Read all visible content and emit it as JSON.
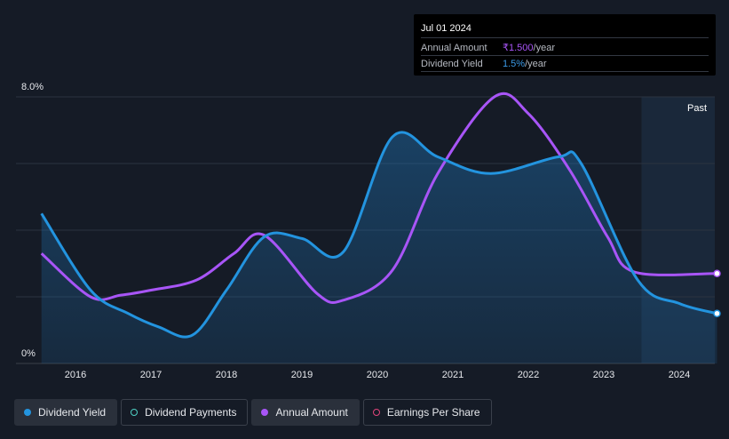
{
  "tooltip": {
    "date": "Jul 01 2024",
    "rows": [
      {
        "label": "Annual Amount",
        "value": "₹1.500",
        "unit": "/year"
      },
      {
        "label": "Dividend Yield",
        "value": "1.5%",
        "unit": "/year"
      }
    ]
  },
  "past_label": "Past",
  "legend": [
    {
      "label": "Dividend Yield",
      "color": "#2394df",
      "style": "filled",
      "active": true
    },
    {
      "label": "Dividend Payments",
      "color": "#4fd1c5",
      "style": "hollow",
      "active": false
    },
    {
      "label": "Annual Amount",
      "color": "#a855f7",
      "style": "filled",
      "active": true
    },
    {
      "label": "Earnings Per Share",
      "color": "#e0457b",
      "style": "hollow",
      "active": false
    }
  ],
  "colors": {
    "yield": "#2394df",
    "annual": "#a855f7",
    "grid": "#2c3340",
    "past_shade": "#1b2a3d"
  },
  "chart_data": {
    "type": "line",
    "y_tick_labels": [
      "8.0%",
      "0%"
    ],
    "ylim": [
      0,
      8
    ],
    "xlim": [
      2015.55,
      2024.5
    ],
    "x_ticks": [
      2016,
      2017,
      2018,
      2019,
      2020,
      2021,
      2022,
      2023,
      2024
    ],
    "x_tick_labels": [
      "2016",
      "2017",
      "2018",
      "2019",
      "2020",
      "2021",
      "2022",
      "2023",
      "2024"
    ],
    "past_start": 2023.5,
    "grid": true,
    "series": [
      {
        "name": "Dividend Yield",
        "points": [
          [
            2015.55,
            4.5
          ],
          [
            2016.2,
            2.2
          ],
          [
            2016.7,
            1.5
          ],
          [
            2017.1,
            1.1
          ],
          [
            2017.55,
            0.85
          ],
          [
            2018.0,
            2.2
          ],
          [
            2018.5,
            3.8
          ],
          [
            2019.0,
            3.75
          ],
          [
            2019.55,
            3.35
          ],
          [
            2020.2,
            6.8
          ],
          [
            2020.8,
            6.2
          ],
          [
            2021.5,
            5.7
          ],
          [
            2022.4,
            6.2
          ],
          [
            2022.7,
            6.0
          ],
          [
            2023.45,
            2.5
          ],
          [
            2024.0,
            1.8
          ],
          [
            2024.5,
            1.5
          ]
        ]
      },
      {
        "name": "Annual Amount",
        "points": [
          [
            2015.55,
            3.3
          ],
          [
            2016.2,
            2.0
          ],
          [
            2016.6,
            2.05
          ],
          [
            2017.0,
            2.2
          ],
          [
            2017.6,
            2.5
          ],
          [
            2018.1,
            3.3
          ],
          [
            2018.5,
            3.85
          ],
          [
            2019.2,
            2.1
          ],
          [
            2019.55,
            1.9
          ],
          [
            2020.2,
            2.8
          ],
          [
            2020.8,
            5.7
          ],
          [
            2021.55,
            8.0
          ],
          [
            2022.0,
            7.5
          ],
          [
            2022.55,
            5.8
          ],
          [
            2023.05,
            3.8
          ],
          [
            2023.4,
            2.75
          ],
          [
            2024.5,
            2.7
          ]
        ]
      }
    ]
  }
}
